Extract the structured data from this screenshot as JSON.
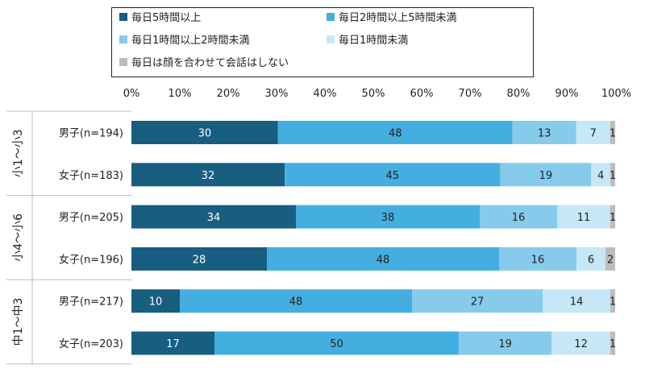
{
  "chart_data": {
    "type": "bar",
    "orientation": "horizontal",
    "stacked": true,
    "title": "",
    "xlabel": "",
    "ylabel": "",
    "xlim": [
      0,
      100
    ],
    "x_ticks": [
      "0%",
      "10%",
      "20%",
      "30%",
      "40%",
      "50%",
      "60%",
      "70%",
      "80%",
      "90%",
      "100%"
    ],
    "x_axis_position": "top",
    "grid": false,
    "legend_position": "top",
    "groups": [
      {
        "label": "小1〜小3",
        "rows": [
          0,
          1
        ]
      },
      {
        "label": "小4〜小6",
        "rows": [
          2,
          3
        ]
      },
      {
        "label": "中1〜中3",
        "rows": [
          4,
          5
        ]
      }
    ],
    "categories": [
      "男子(n=194)",
      "女子(n=183)",
      "男子(n=205)",
      "女子(n=196)",
      "男子(n=217)",
      "女子(n=203)"
    ],
    "series": [
      {
        "name": "毎日5時間以上",
        "color": "#175E80",
        "label_color": "#ffffff",
        "values": [
          30,
          32,
          34,
          28,
          10,
          17
        ]
      },
      {
        "name": "毎日2時間以上5時間未満",
        "color": "#45AEE0",
        "label_color": "#222222",
        "values": [
          48,
          45,
          38,
          48,
          48,
          50
        ]
      },
      {
        "name": "毎日1時間以上2時間未満",
        "color": "#86CBEC",
        "label_color": "#222222",
        "values": [
          13,
          19,
          16,
          16,
          27,
          19
        ]
      },
      {
        "name": "毎日1時間未満",
        "color": "#C6E7F7",
        "label_color": "#222222",
        "values": [
          7,
          4,
          11,
          6,
          14,
          12
        ]
      },
      {
        "name": "毎日は顔を合わせて会話はしない",
        "color": "#BDBDBD",
        "label_color": "#222222",
        "values": [
          1,
          1,
          1,
          2,
          1,
          1
        ]
      }
    ]
  }
}
